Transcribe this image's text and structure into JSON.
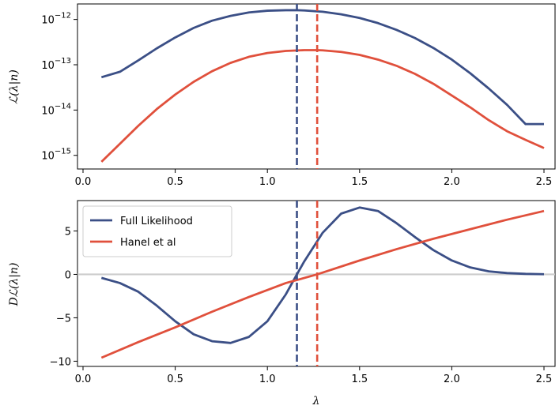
{
  "colors": {
    "full": "#3b4f86",
    "hanel": "#e0503c",
    "zero_line": "#cccccc"
  },
  "chart_data": [
    {
      "type": "line",
      "yscale": "log",
      "xlabel": "",
      "ylabel": "ℒ(λ|n)",
      "xlim": [
        -0.03,
        2.56
      ],
      "ylim": [
        5e-16,
        2.2e-12
      ],
      "xticks": [
        0.0,
        0.5,
        1.0,
        1.5,
        2.0,
        2.5
      ],
      "xtick_labels": [
        "0.0",
        "0.5",
        "1.0",
        "1.5",
        "2.0",
        "2.5"
      ],
      "yticks": [
        1e-15,
        1e-14,
        1e-13,
        1e-12
      ],
      "ytick_labels": [
        {
          "base": "10",
          "exp": "−15"
        },
        {
          "base": "10",
          "exp": "−14"
        },
        {
          "base": "10",
          "exp": "−13"
        },
        {
          "base": "10",
          "exp": "−12"
        }
      ],
      "vlines": [
        {
          "x": 1.16,
          "color": "#3b4f86",
          "style": "dashed"
        },
        {
          "x": 1.27,
          "color": "#e0503c",
          "style": "dashed"
        }
      ],
      "series": [
        {
          "color": "#3b4f86",
          "x": [
            0.1,
            0.2,
            0.3,
            0.4,
            0.5,
            0.6,
            0.7,
            0.8,
            0.9,
            1.0,
            1.1,
            1.16,
            1.2,
            1.3,
            1.4,
            1.5,
            1.6,
            1.7,
            1.8,
            1.9,
            2.0,
            2.1,
            2.2,
            2.3,
            2.4,
            2.5
          ],
          "y": [
            5.3e-14,
            7e-14,
            1.25e-13,
            2.3e-13,
            4e-13,
            6.5e-13,
            9.4e-13,
            1.2e-12,
            1.43e-12,
            1.56e-12,
            1.6e-12,
            1.6e-12,
            1.58e-12,
            1.48e-12,
            1.3e-12,
            1.08e-12,
            8.3e-13,
            5.9e-13,
            3.9e-13,
            2.35e-13,
            1.3e-13,
            6.5e-14,
            3e-14,
            1.3e-14,
            4.9e-15,
            4.9e-15
          ]
        },
        {
          "color": "#e0503c",
          "x": [
            0.1,
            0.2,
            0.3,
            0.4,
            0.5,
            0.6,
            0.7,
            0.8,
            0.9,
            1.0,
            1.1,
            1.2,
            1.27,
            1.3,
            1.4,
            1.5,
            1.6,
            1.7,
            1.8,
            1.9,
            2.0,
            2.1,
            2.2,
            2.3,
            2.4,
            2.5
          ],
          "y": [
            7.2e-16,
            1.8e-15,
            4.5e-15,
            1.05e-14,
            2.2e-14,
            4.2e-14,
            7.2e-14,
            1.1e-13,
            1.5e-13,
            1.82e-13,
            2.02e-13,
            2.1e-13,
            2.1e-13,
            2.08e-13,
            1.92e-13,
            1.65e-13,
            1.3e-13,
            9.5e-14,
            6.3e-14,
            3.8e-14,
            2.1e-14,
            1.15e-14,
            6e-15,
            3.4e-15,
            2.2e-15,
            1.45e-15
          ]
        }
      ]
    },
    {
      "type": "line",
      "yscale": "linear",
      "xlabel": "λ",
      "ylabel": "Dℒ(λ|n)",
      "xlim": [
        -0.03,
        2.56
      ],
      "ylim": [
        -10.6,
        8.5
      ],
      "xticks": [
        0.0,
        0.5,
        1.0,
        1.5,
        2.0,
        2.5
      ],
      "xtick_labels": [
        "0.0",
        "0.5",
        "1.0",
        "1.5",
        "2.0",
        "2.5"
      ],
      "yticks": [
        -10,
        -5,
        0,
        5
      ],
      "ytick_labels": [
        "−10",
        "−5",
        "0",
        "5"
      ],
      "hline": {
        "y": 0,
        "color": "#cccccc"
      },
      "vlines": [
        {
          "x": 1.16,
          "color": "#3b4f86",
          "style": "dashed"
        },
        {
          "x": 1.27,
          "color": "#e0503c",
          "style": "dashed"
        }
      ],
      "legend": {
        "position": "top-left"
      },
      "series": [
        {
          "name": "Full Likelihood",
          "color": "#3b4f86",
          "x": [
            0.1,
            0.2,
            0.3,
            0.4,
            0.5,
            0.6,
            0.7,
            0.8,
            0.9,
            1.0,
            1.1,
            1.16,
            1.2,
            1.3,
            1.4,
            1.5,
            1.6,
            1.7,
            1.8,
            1.9,
            2.0,
            2.1,
            2.2,
            2.3,
            2.4,
            2.5
          ],
          "y": [
            -0.4,
            -1.0,
            -2.0,
            -3.6,
            -5.4,
            -6.9,
            -7.7,
            -7.9,
            -7.2,
            -5.4,
            -2.3,
            0.0,
            1.5,
            4.8,
            7.0,
            7.7,
            7.3,
            5.9,
            4.3,
            2.8,
            1.6,
            0.8,
            0.35,
            0.15,
            0.06,
            0.02
          ]
        },
        {
          "name": "Hanel et al",
          "color": "#e0503c",
          "x": [
            0.1,
            0.3,
            0.5,
            0.7,
            0.9,
            1.1,
            1.27,
            1.5,
            1.7,
            1.9,
            2.1,
            2.3,
            2.5
          ],
          "y": [
            -9.6,
            -7.8,
            -6.1,
            -4.3,
            -2.6,
            -1.0,
            0.0,
            1.6,
            2.9,
            4.1,
            5.2,
            6.3,
            7.3
          ]
        }
      ]
    }
  ]
}
